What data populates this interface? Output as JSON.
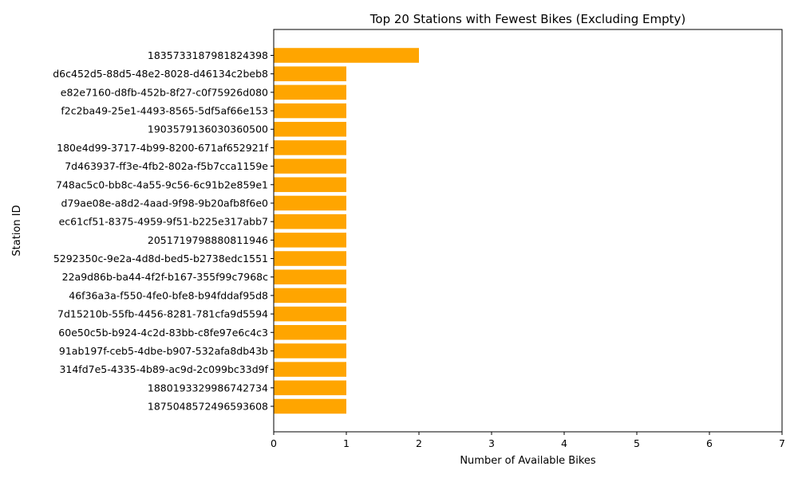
{
  "chart_data": {
    "type": "bar",
    "orientation": "horizontal",
    "title": "Top 20 Stations with Fewest Bikes (Excluding Empty)",
    "xlabel": "Number of Available Bikes",
    "ylabel": "Station ID",
    "xlim": [
      0,
      7
    ],
    "xticks": [
      "0",
      "1",
      "2",
      "3",
      "4",
      "5",
      "6",
      "7"
    ],
    "grid": false,
    "bar_color": "#ffa500",
    "categories": [
      "1835733187981824398",
      "d6c452d5-88d5-48e2-8028-d46134c2beb8",
      "e82e7160-d8fb-452b-8f27-c0f75926d080",
      "f2c2ba49-25e1-4493-8565-5df5af66e153",
      "1903579136030360500",
      "180e4d99-3717-4b99-8200-671af652921f",
      "7d463937-ff3e-4fb2-802a-f5b7cca1159e",
      "748ac5c0-bb8c-4a55-9c56-6c91b2e859e1",
      "d79ae08e-a8d2-4aad-9f98-9b20afb8f6e0",
      "ec61cf51-8375-4959-9f51-b225e317abb7",
      "2051719798880811946",
      "5292350c-9e2a-4d8d-bed5-b2738edc1551",
      "22a9d86b-ba44-4f2f-b167-355f99c7968c",
      "46f36a3a-f550-4fe0-bfe8-b94fddaf95d8",
      "7d15210b-55fb-4456-8281-781cfa9d5594",
      "60e50c5b-b924-4c2d-83bb-c8fe97e6c4c3",
      "91ab197f-ceb5-4dbe-b907-532afa8db43b",
      "314fd7e5-4335-4b89-ac9d-2c099bc33d9f",
      "1880193329986742734",
      "1875048572496593608"
    ],
    "values": [
      2,
      1,
      1,
      1,
      1,
      1,
      1,
      1,
      1,
      1,
      1,
      1,
      1,
      1,
      1,
      1,
      1,
      1,
      1,
      1
    ]
  }
}
